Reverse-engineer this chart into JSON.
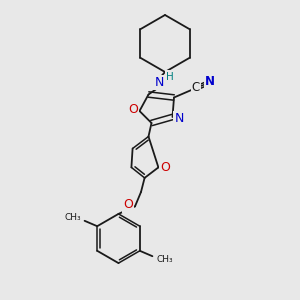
{
  "bg_color": "#e8e8e8",
  "bond_color": "#1a1a1a",
  "N_color": "#0000cc",
  "O_color": "#cc0000",
  "C_color": "#1a1a1a",
  "H_color": "#008080",
  "figsize": [
    3.0,
    3.0
  ],
  "dpi": 100,
  "xlim": [
    0,
    10
  ],
  "ylim": [
    0,
    10
  ]
}
